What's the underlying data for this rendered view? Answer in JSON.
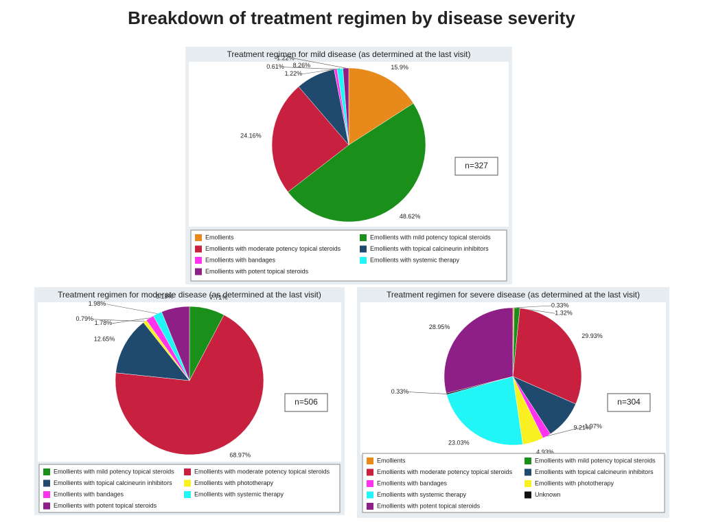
{
  "title": "Breakdown of treatment regimen by disease severity",
  "chart_data": [
    {
      "type": "pie",
      "title": "Treatment regimen for mild disease (as determined at the last visit)",
      "annotation": "n=327",
      "categories": [
        "Emollients",
        "Emollients with mild potency topical steroids",
        "Emollients with moderate potency topical steroids",
        "Emollients with topical calcineurin inhibitors",
        "Emollients with bandages",
        "Emollients with systemic therapy",
        "Emollients with potent topical steroids"
      ],
      "values": [
        15.9,
        48.62,
        24.16,
        8.26,
        0.61,
        1.22,
        1.22
      ],
      "value_labels": [
        "15.9%",
        "48.62%",
        "24.16%",
        "8.26%",
        "0.61%",
        "1.22%",
        "1.22%"
      ],
      "colors": [
        "#e8891c",
        "#1a8f1a",
        "#c8213f",
        "#1f4a6e",
        "#ff33ee",
        "#22f5f5",
        "#8e1f86"
      ]
    },
    {
      "type": "pie",
      "title": "Treatment regimen for moderate disease (as determined at the last visit)",
      "annotation": "n=506",
      "categories": [
        "Emollients with mild potency topical steroids",
        "Emollients with moderate potency topical steroids",
        "Emollients with topical calcineurin inhibitors",
        "Emollients with phototherapy",
        "Emollients with bandages",
        "Emollients with systemic therapy",
        "Emollients with potent topical steroids"
      ],
      "values": [
        7.71,
        68.97,
        12.65,
        0.79,
        1.78,
        1.98,
        6.13
      ],
      "value_labels": [
        "7.71%",
        "68.97%",
        "12.65%",
        "0.79%",
        "1.78%",
        "1.98%",
        "6.13%"
      ],
      "colors": [
        "#1a8f1a",
        "#c8213f",
        "#1f4a6e",
        "#f8f020",
        "#ff33ee",
        "#22f5f5",
        "#8e1f86"
      ]
    },
    {
      "type": "pie",
      "title": "Treatment regimen for severe disease (as determined at the last visit)",
      "annotation": "n=304",
      "categories": [
        "Emollients",
        "Emollients with mild potency topical steroids",
        "Emollients with moderate potency topical steroids",
        "Emollients with topical calcineurin inhibitors",
        "Emollients with bandages",
        "Emollients with phototherapy",
        "Emollients with systemic therapy",
        "Unknown",
        "Emollients with potent topical steroids"
      ],
      "values": [
        0.33,
        1.32,
        29.93,
        9.21,
        1.97,
        4.93,
        23.03,
        0.33,
        28.95
      ],
      "value_labels": [
        "0.33%",
        "1.32%",
        "29.93%",
        "9.21%",
        "1.97%",
        "4.93%",
        "23.03%",
        "0.33%",
        "28.95%"
      ],
      "colors": [
        "#e8891c",
        "#1a8f1a",
        "#c8213f",
        "#1f4a6e",
        "#ff33ee",
        "#f8f020",
        "#22f5f5",
        "#111111",
        "#8e1f86"
      ]
    }
  ]
}
